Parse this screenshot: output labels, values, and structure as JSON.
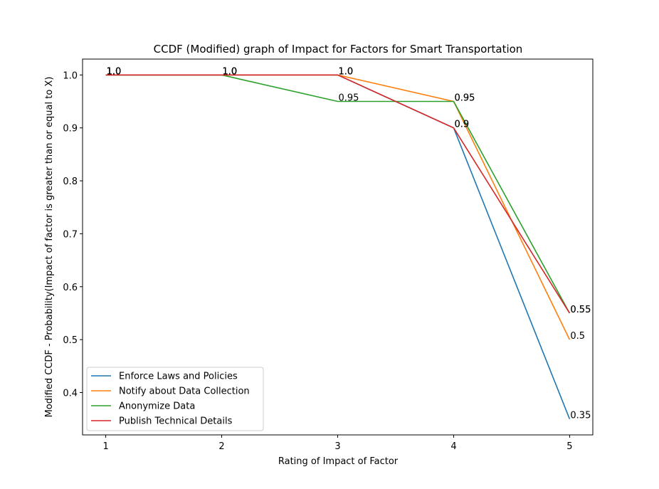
{
  "chart_data": {
    "type": "line",
    "title": "CCDF (Modified) graph of Impact for Factors for Smart Transportation",
    "xlabel": "Rating of Impact of Factor",
    "ylabel": "Modified CCDF - Probability(Impact of factor is greater than or equal to X)",
    "x": [
      1,
      2,
      3,
      4,
      5
    ],
    "xlim": [
      0.8,
      5.2
    ],
    "ylim": [
      0.32,
      1.03
    ],
    "xticks": [
      "1",
      "2",
      "3",
      "4",
      "5"
    ],
    "yticks": [
      "0.4",
      "0.5",
      "0.6",
      "0.7",
      "0.8",
      "0.9",
      "1.0"
    ],
    "grid": false,
    "legend_position": "lower-left",
    "series": [
      {
        "name": "Enforce Laws and Policies",
        "color": "#1f77b4",
        "values": [
          1.0,
          1.0,
          1.0,
          0.9,
          0.35
        ],
        "labels": [
          "1.0",
          "1.0",
          "1.0",
          "0.9",
          "0.35"
        ]
      },
      {
        "name": "Notify about Data Collection",
        "color": "#ff7f0e",
        "values": [
          1.0,
          1.0,
          1.0,
          0.95,
          0.5
        ],
        "labels": [
          "1.0",
          "1.0",
          "1.0",
          "0.95",
          "0.5"
        ]
      },
      {
        "name": "Anonymize Data",
        "color": "#2ca02c",
        "values": [
          1.0,
          1.0,
          0.95,
          0.95,
          0.55
        ],
        "labels": [
          "1.0",
          "1.0",
          "0.95",
          "0.95",
          "0.55"
        ]
      },
      {
        "name": "Publish Technical Details",
        "color": "#d62728",
        "values": [
          1.0,
          1.0,
          1.0,
          0.9,
          0.55
        ],
        "labels": [
          "1.0",
          "1.0",
          "1.0",
          "0.9",
          "0.55"
        ]
      }
    ]
  }
}
